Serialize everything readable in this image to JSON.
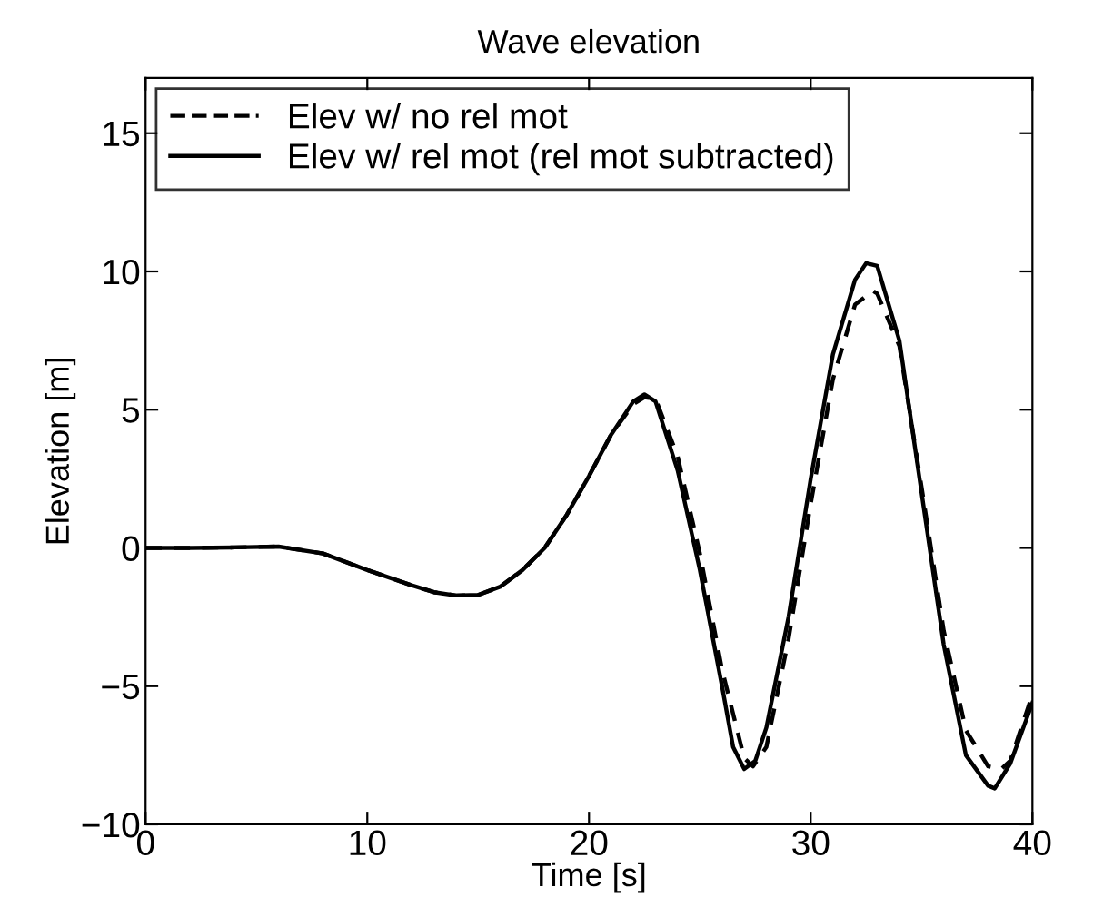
{
  "chart_data": {
    "type": "line",
    "title": "Wave elevation",
    "xlabel": "Time [s]",
    "ylabel": "Elevation [m]",
    "xlim": [
      0,
      40
    ],
    "xticks": [
      0,
      10,
      20,
      30,
      40
    ],
    "ylim": [
      -10,
      17
    ],
    "yticks": [
      {
        "value": -10,
        "label": "−10"
      },
      {
        "value": -5,
        "label": "−5"
      },
      0,
      5,
      10,
      15
    ],
    "grid": false,
    "legend": "top left",
    "marker": "none",
    "series": [
      {
        "name": "Elev w/ no rel mot",
        "color": "#000000",
        "line_style": "dashed",
        "x": [
          0,
          2,
          4,
          6,
          8,
          10,
          12,
          13,
          14,
          15,
          16,
          17,
          18,
          19,
          20,
          21,
          22,
          22.5,
          23,
          24,
          25,
          26,
          27,
          27.4,
          28,
          29,
          30,
          31,
          32,
          32.8,
          33,
          34,
          35,
          36,
          37,
          38,
          38.6,
          39,
          40
        ],
        "values": [
          0,
          0,
          0.02,
          0.05,
          -0.2,
          -0.8,
          -1.35,
          -1.6,
          -1.72,
          -1.7,
          -1.4,
          -0.8,
          0,
          1.2,
          2.6,
          4.1,
          5.2,
          5.45,
          5.4,
          3.3,
          -0.2,
          -4.4,
          -7.6,
          -7.9,
          -7.2,
          -3.3,
          1.6,
          6.1,
          8.8,
          9.3,
          9.2,
          7.3,
          2.2,
          -3,
          -6.6,
          -7.9,
          -8.0,
          -7.7,
          -5.3
        ]
      },
      {
        "name": "Elev w/ rel mot (rel mot subtracted)",
        "color": "#000000",
        "line_style": "solid",
        "x": [
          0,
          2,
          4,
          6,
          8,
          10,
          12,
          13,
          14,
          15,
          16,
          17,
          18,
          19,
          20,
          21,
          22,
          22.5,
          23,
          24,
          25,
          26,
          26.5,
          27,
          27.5,
          28,
          29,
          30,
          31,
          32,
          32.5,
          33,
          34,
          35,
          36,
          37,
          38,
          38.3,
          39,
          40
        ],
        "values": [
          0,
          0,
          0.02,
          0.05,
          -0.2,
          -0.8,
          -1.35,
          -1.6,
          -1.72,
          -1.7,
          -1.4,
          -0.8,
          0,
          1.2,
          2.6,
          4.1,
          5.3,
          5.55,
          5.3,
          2.8,
          -0.8,
          -5,
          -7.2,
          -8,
          -7.7,
          -6.5,
          -2.5,
          2.5,
          7,
          9.7,
          10.3,
          10.2,
          7.5,
          2,
          -3.5,
          -7.5,
          -8.6,
          -8.7,
          -7.8,
          -5.6
        ]
      }
    ]
  }
}
